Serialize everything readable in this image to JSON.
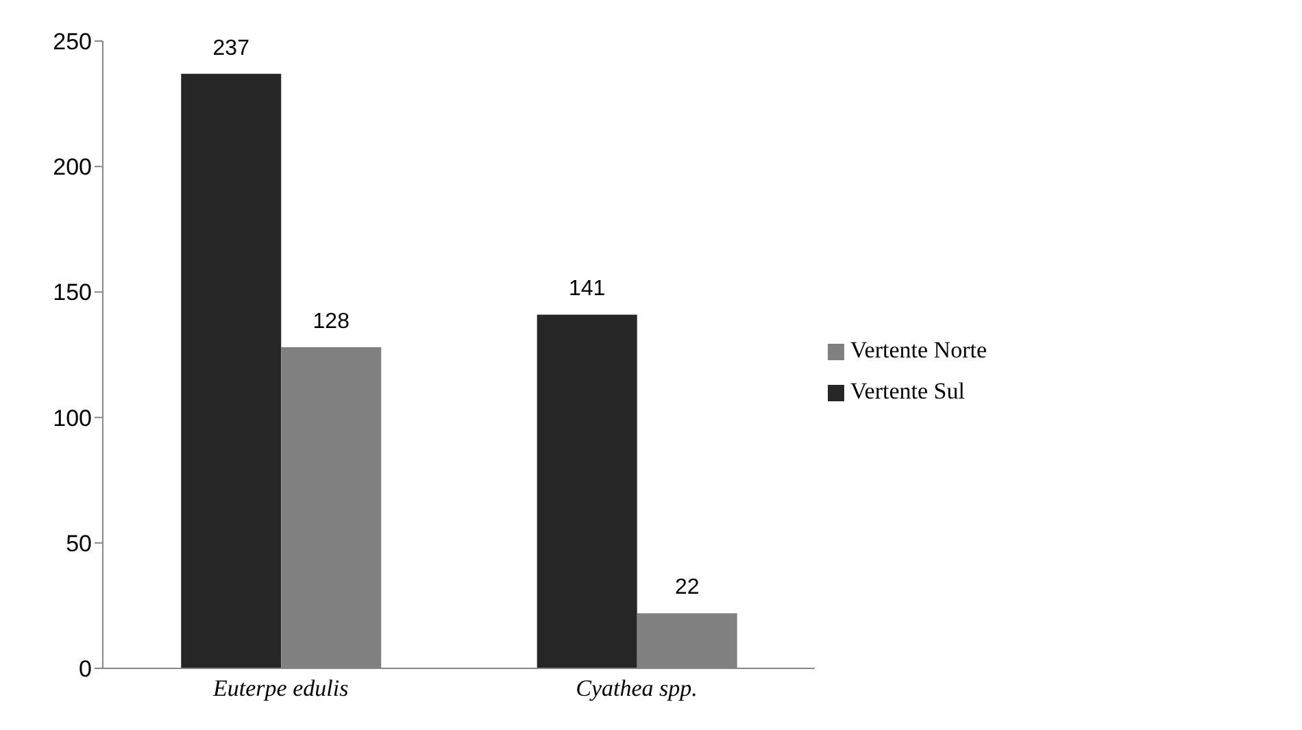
{
  "chart_data": {
    "type": "bar",
    "categories": [
      "Euterpe edulis",
      "Cyathea spp."
    ],
    "series": [
      {
        "name": "Vertente Sul",
        "color": "#262626",
        "values": [
          237,
          141
        ]
      },
      {
        "name": "Vertente Norte",
        "color": "#808080",
        "values": [
          128,
          22
        ]
      }
    ],
    "ylim": [
      0,
      250
    ],
    "yticks": [
      0,
      50,
      100,
      150,
      200,
      250
    ],
    "grid": false,
    "legend": "right",
    "data_labels": true
  }
}
